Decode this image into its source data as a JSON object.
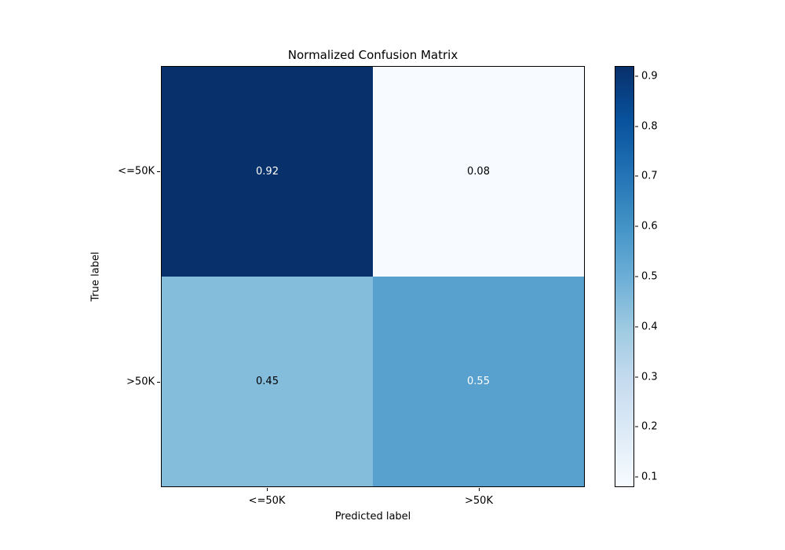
{
  "chart_data": {
    "type": "heatmap",
    "title": "Normalized Confusion Matrix",
    "xlabel": "Predicted label",
    "ylabel": "True label",
    "x_tick_labels": [
      "<=50K",
      ">50K"
    ],
    "y_tick_labels": [
      "<=50K",
      ">50K"
    ],
    "matrix": [
      [
        0.92,
        0.08
      ],
      [
        0.45,
        0.55
      ]
    ],
    "cell_labels": [
      [
        "0.92",
        "0.08"
      ],
      [
        "0.45",
        "0.55"
      ]
    ],
    "cell_colors": [
      [
        "#08306b",
        "#f7fbff"
      ],
      [
        "#84bcdb",
        "#58a1ce"
      ]
    ],
    "cell_text_colors": [
      [
        "#ffffff",
        "#000000"
      ],
      [
        "#000000",
        "#ffffff"
      ]
    ],
    "colormap": "Blues",
    "colormap_stops": [
      "#f7fbff",
      "#deebf7",
      "#c6dbef",
      "#9ecae1",
      "#6baed6",
      "#4292c6",
      "#2171b5",
      "#08519c",
      "#08306b"
    ],
    "vmin": 0.08,
    "vmax": 0.92,
    "colorbar_ticks": [
      0.9,
      0.8,
      0.7,
      0.6,
      0.5,
      0.4,
      0.3,
      0.2,
      0.1
    ],
    "legend_position": "right-colorbar",
    "grid": false
  }
}
